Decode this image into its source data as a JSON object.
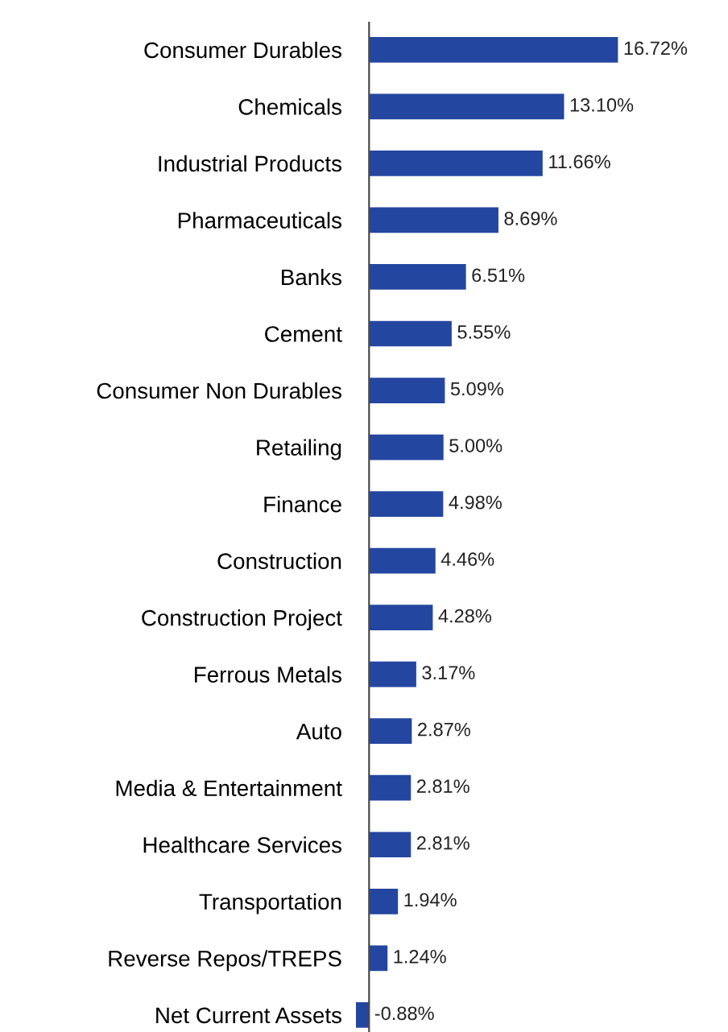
{
  "chart_data": {
    "type": "bar",
    "orientation": "horizontal",
    "categories": [
      "Consumer Durables",
      "Chemicals",
      "Industrial Products",
      "Pharmaceuticals",
      "Banks",
      "Cement",
      "Consumer Non Durables",
      "Retailing",
      "Finance",
      "Construction",
      "Construction Project",
      "Ferrous Metals",
      "Auto",
      "Media & Entertainment",
      "Healthcare Services",
      "Transportation",
      "Reverse Repos/TREPS",
      "Net Current Assets"
    ],
    "values": [
      16.72,
      13.1,
      11.66,
      8.69,
      6.51,
      5.55,
      5.09,
      5.0,
      4.98,
      4.46,
      4.28,
      3.17,
      2.87,
      2.81,
      2.81,
      1.94,
      1.24,
      -0.88
    ],
    "value_labels": [
      "16.72%",
      "13.10%",
      "11.66%",
      "8.69%",
      "6.51%",
      "5.55%",
      "5.09%",
      "5.00%",
      "4.98%",
      "4.46%",
      "4.28%",
      "3.17%",
      "2.87%",
      "2.81%",
      "2.81%",
      "1.94%",
      "1.24%",
      "-0.88%"
    ],
    "color": "#2346a0",
    "grid": false,
    "legend": false
  }
}
